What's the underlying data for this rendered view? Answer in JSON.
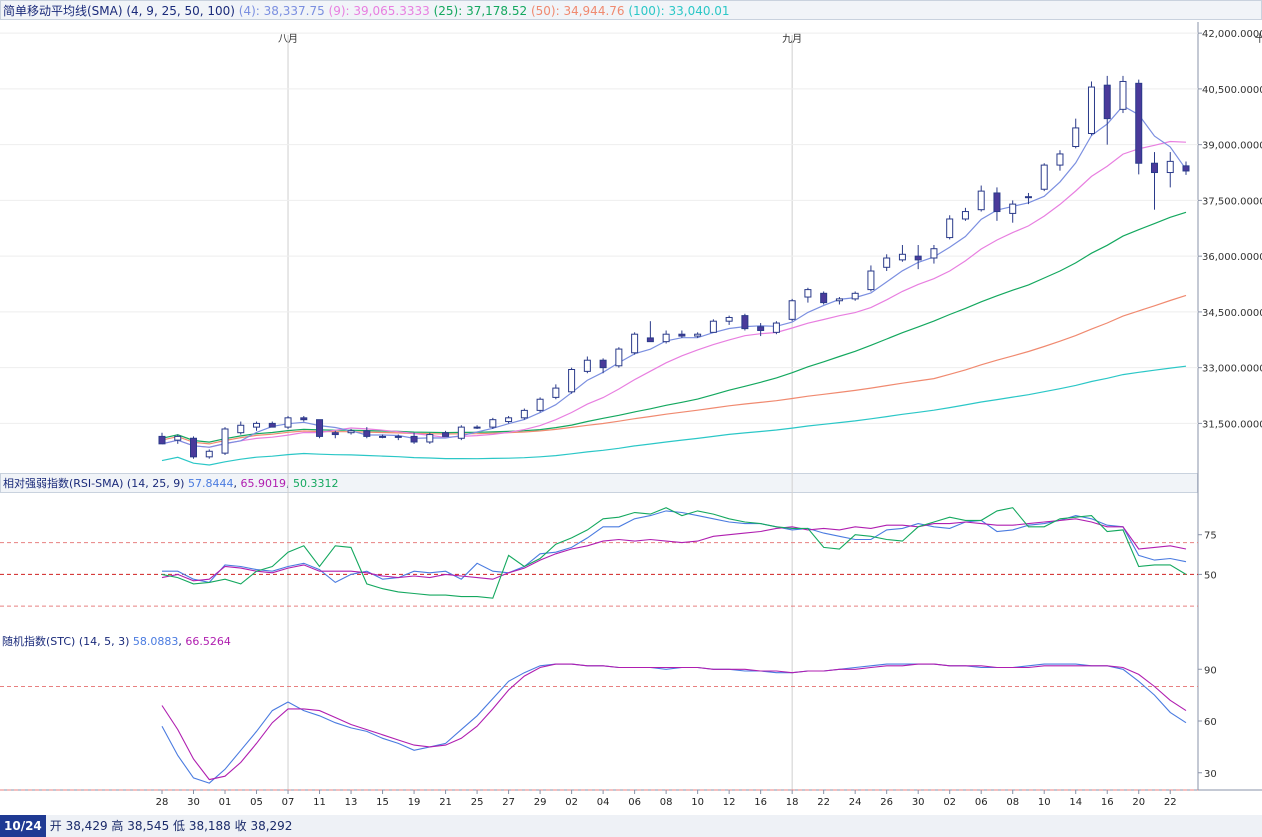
{
  "colors": {
    "sma4": "#7b8fe0",
    "sma9": "#e87fe0",
    "sma25": "#14a85f",
    "sma50": "#f08a70",
    "sma100": "#2bc7c7",
    "up_candle": "#ffffff",
    "down_candle": "#4a3a9a",
    "candle_outline": "#2a3a8a",
    "rsi": "#4a7be0",
    "rsi_sma": "#b01eb0",
    "rsi_sma2": "#14a85f",
    "stc_k": "#4a7be0",
    "stc_d": "#b01eb0",
    "ref_line": "#e88080"
  },
  "legend_top": {
    "name": "简单移动平均线(SMA) (4, 9, 25, 50, 100)",
    "v4": "(4): 38,337.75",
    "v9": "(9): 39,065.3333",
    "v25": "(25): 37,178.52",
    "v50": "(50): 34,944.76",
    "v100": "(100): 33,040.01"
  },
  "legend_rsi": {
    "name": "相对强弱指数(RSI-SMA) (14, 25, 9)",
    "v1": "57.8444",
    "v2": "65.9019",
    "v3": "50.3312"
  },
  "legend_stc": {
    "name": "随机指数(STC) (14, 5, 3)",
    "v1": "58.0883",
    "v2": "66.5264"
  },
  "footer": {
    "date": "10/24",
    "text": "开 38,429 高 38,545 低 38,188 收 38,292"
  },
  "chart_data": [
    {
      "type": "candlestick",
      "title": "简单移动平均线(SMA) (4, 9, 25, 50, 100)",
      "month_labels": [
        {
          "label": "八月",
          "index": 8
        },
        {
          "label": "九月",
          "index": 40
        },
        {
          "label": "十月",
          "index": 70
        }
      ],
      "x_tick_labels": [
        "28",
        "30",
        "01",
        "05",
        "07",
        "11",
        "13",
        "15",
        "19",
        "21",
        "25",
        "27",
        "29",
        "02",
        "04",
        "06",
        "08",
        "10",
        "12",
        "16",
        "18",
        "22",
        "24",
        "26",
        "30",
        "02",
        "06",
        "08",
        "10",
        "14",
        "16",
        "20",
        "22"
      ],
      "y_ticks": [
        "42,000.0000",
        "40,500.0000",
        "39,000.0000",
        "37,500.0000",
        "36,000.0000",
        "34,500.0000",
        "33,000.0000",
        "31,500.0000"
      ],
      "y_tick_values": [
        42000,
        40500,
        39000,
        37500,
        36000,
        34500,
        33000,
        31500
      ],
      "ylim": [
        30300,
        42300
      ],
      "candles": [
        {
          "o": 31150,
          "h": 31250,
          "l": 30950,
          "c": 30950
        },
        {
          "o": 31050,
          "h": 31200,
          "l": 30950,
          "c": 31150
        },
        {
          "o": 31100,
          "h": 31150,
          "l": 30550,
          "c": 30600
        },
        {
          "o": 30600,
          "h": 30800,
          "l": 30550,
          "c": 30750
        },
        {
          "o": 30700,
          "h": 31400,
          "l": 30650,
          "c": 31350
        },
        {
          "o": 31250,
          "h": 31550,
          "l": 31200,
          "c": 31450
        },
        {
          "o": 31400,
          "h": 31550,
          "l": 31300,
          "c": 31500
        },
        {
          "o": 31500,
          "h": 31550,
          "l": 31400,
          "c": 31400
        },
        {
          "o": 31400,
          "h": 31700,
          "l": 31350,
          "c": 31650
        },
        {
          "o": 31650,
          "h": 31700,
          "l": 31550,
          "c": 31600
        },
        {
          "o": 31600,
          "h": 31600,
          "l": 31100,
          "c": 31150
        },
        {
          "o": 31250,
          "h": 31300,
          "l": 31100,
          "c": 31200
        },
        {
          "o": 31250,
          "h": 31350,
          "l": 31200,
          "c": 31300
        },
        {
          "o": 31300,
          "h": 31400,
          "l": 31100,
          "c": 31150
        },
        {
          "o": 31150,
          "h": 31200,
          "l": 31100,
          "c": 31150
        },
        {
          "o": 31150,
          "h": 31200,
          "l": 31050,
          "c": 31150
        },
        {
          "o": 31150,
          "h": 31250,
          "l": 30950,
          "c": 31000
        },
        {
          "o": 31000,
          "h": 31250,
          "l": 30950,
          "c": 31200
        },
        {
          "o": 31250,
          "h": 31300,
          "l": 31150,
          "c": 31150
        },
        {
          "o": 31100,
          "h": 31450,
          "l": 31050,
          "c": 31400
        },
        {
          "o": 31400,
          "h": 31450,
          "l": 31350,
          "c": 31400
        },
        {
          "o": 31400,
          "h": 31650,
          "l": 31350,
          "c": 31600
        },
        {
          "o": 31550,
          "h": 31700,
          "l": 31500,
          "c": 31650
        },
        {
          "o": 31650,
          "h": 31900,
          "l": 31600,
          "c": 31850
        },
        {
          "o": 31850,
          "h": 32200,
          "l": 31800,
          "c": 32150
        },
        {
          "o": 32200,
          "h": 32550,
          "l": 32150,
          "c": 32450
        },
        {
          "o": 32350,
          "h": 33000,
          "l": 32300,
          "c": 32950
        },
        {
          "o": 32900,
          "h": 33300,
          "l": 32850,
          "c": 33200
        },
        {
          "o": 33200,
          "h": 33250,
          "l": 32850,
          "c": 33000
        },
        {
          "o": 33050,
          "h": 33550,
          "l": 33000,
          "c": 33500
        },
        {
          "o": 33400,
          "h": 33950,
          "l": 33350,
          "c": 33900
        },
        {
          "o": 33800,
          "h": 34250,
          "l": 33750,
          "c": 33700
        },
        {
          "o": 33700,
          "h": 34000,
          "l": 33650,
          "c": 33900
        },
        {
          "o": 33900,
          "h": 34000,
          "l": 33800,
          "c": 33850
        },
        {
          "o": 33850,
          "h": 33950,
          "l": 33800,
          "c": 33900
        },
        {
          "o": 33950,
          "h": 34300,
          "l": 33950,
          "c": 34250
        },
        {
          "o": 34250,
          "h": 34400,
          "l": 34150,
          "c": 34350
        },
        {
          "o": 34400,
          "h": 34450,
          "l": 34000,
          "c": 34050
        },
        {
          "o": 34100,
          "h": 34200,
          "l": 33850,
          "c": 34000
        },
        {
          "o": 33950,
          "h": 34250,
          "l": 33900,
          "c": 34200
        },
        {
          "o": 34300,
          "h": 34850,
          "l": 34250,
          "c": 34800
        },
        {
          "o": 34900,
          "h": 35150,
          "l": 34750,
          "c": 35100
        },
        {
          "o": 35000,
          "h": 35050,
          "l": 34700,
          "c": 34750
        },
        {
          "o": 34800,
          "h": 34900,
          "l": 34700,
          "c": 34850
        },
        {
          "o": 34850,
          "h": 35050,
          "l": 34800,
          "c": 35000
        },
        {
          "o": 35100,
          "h": 35750,
          "l": 35050,
          "c": 35600
        },
        {
          "o": 35700,
          "h": 36050,
          "l": 35600,
          "c": 35950
        },
        {
          "o": 35900,
          "h": 36300,
          "l": 35850,
          "c": 36050
        },
        {
          "o": 36000,
          "h": 36300,
          "l": 35650,
          "c": 35900
        },
        {
          "o": 35950,
          "h": 36300,
          "l": 35800,
          "c": 36200
        },
        {
          "o": 36500,
          "h": 37100,
          "l": 36450,
          "c": 37000
        },
        {
          "o": 37000,
          "h": 37300,
          "l": 36950,
          "c": 37200
        },
        {
          "o": 37250,
          "h": 37900,
          "l": 37200,
          "c": 37750
        },
        {
          "o": 37700,
          "h": 37850,
          "l": 36950,
          "c": 37200
        },
        {
          "o": 37150,
          "h": 37500,
          "l": 36900,
          "c": 37400
        },
        {
          "o": 37600,
          "h": 37700,
          "l": 37400,
          "c": 37600
        },
        {
          "o": 37800,
          "h": 38500,
          "l": 37750,
          "c": 38450
        },
        {
          "o": 38450,
          "h": 38850,
          "l": 38300,
          "c": 38750
        },
        {
          "o": 38950,
          "h": 39700,
          "l": 38900,
          "c": 39450
        },
        {
          "o": 39300,
          "h": 40700,
          "l": 39250,
          "c": 40550
        },
        {
          "o": 40600,
          "h": 40850,
          "l": 39000,
          "c": 39700
        },
        {
          "o": 39950,
          "h": 40850,
          "l": 39850,
          "c": 40700
        },
        {
          "o": 40650,
          "h": 40750,
          "l": 38200,
          "c": 38500
        },
        {
          "o": 38500,
          "h": 38800,
          "l": 37250,
          "c": 38250
        },
        {
          "o": 38250,
          "h": 38800,
          "l": 37850,
          "c": 38550
        },
        {
          "o": 38429,
          "h": 38545,
          "l": 38188,
          "c": 38292
        }
      ],
      "sma4_end": 38337.75,
      "sma9_end": 39065.3333,
      "sma25_end": 37178.52,
      "sma50_end": 34944.76,
      "sma100_end": 33040.01
    },
    {
      "type": "line",
      "title": "相对强弱指数(RSI-SMA) (14, 25, 9)",
      "y_ticks": [
        "75",
        "50"
      ],
      "ylim": [
        15,
        100
      ],
      "ref_lines": [
        70,
        50,
        30
      ],
      "series": [
        {
          "name": "57.8444",
          "values": [
            52,
            52,
            47,
            45,
            56,
            55,
            53,
            52,
            55,
            57,
            53,
            45,
            50,
            52,
            47,
            48,
            52,
            51,
            52,
            47,
            57,
            52,
            51,
            55,
            63,
            64,
            67,
            73,
            80,
            80,
            85,
            87,
            90,
            89,
            87,
            85,
            83,
            82,
            82,
            80,
            78,
            79,
            76,
            74,
            72,
            72,
            78,
            79,
            82,
            80,
            79,
            83,
            84,
            77,
            78,
            81,
            82,
            84,
            87,
            85,
            81,
            80,
            62,
            59,
            60,
            58
          ]
        },
        {
          "name": "65.9019",
          "values": [
            48,
            50,
            46,
            47,
            55,
            54,
            52,
            51,
            54,
            56,
            52,
            52,
            52,
            51,
            49,
            48,
            49,
            48,
            50,
            49,
            48,
            47,
            51,
            54,
            59,
            63,
            66,
            68,
            71,
            72,
            71,
            72,
            71,
            70,
            71,
            74,
            75,
            76,
            77,
            79,
            80,
            78,
            79,
            78,
            80,
            79,
            81,
            81,
            80,
            82,
            82,
            83,
            82,
            81,
            81,
            82,
            83,
            84,
            85,
            83,
            80,
            80,
            66,
            67,
            68,
            66
          ]
        },
        {
          "name": "50.3312",
          "values": [
            50,
            48,
            44,
            45,
            47,
            44,
            52,
            55,
            64,
            68,
            55,
            68,
            67,
            44,
            41,
            39,
            38,
            37,
            37,
            36,
            36,
            35,
            62,
            55,
            60,
            69,
            73,
            78,
            85,
            86,
            89,
            88,
            92,
            87,
            90,
            88,
            85,
            83,
            82,
            80,
            79,
            79,
            67,
            66,
            75,
            74,
            72,
            71,
            80,
            83,
            86,
            84,
            84,
            90,
            92,
            80,
            80,
            85,
            86,
            87,
            77,
            78,
            55,
            56,
            56,
            50
          ]
        }
      ]
    },
    {
      "type": "line",
      "title": "随机指数(STC) (14, 5, 3)",
      "y_ticks": [
        "90",
        "60",
        "30"
      ],
      "ylim": [
        20,
        100
      ],
      "ref_lines": [
        80,
        20
      ],
      "series": [
        {
          "name": "58.0883",
          "values": [
            57,
            40,
            27,
            24,
            32,
            43,
            54,
            66,
            71,
            66,
            63,
            59,
            56,
            54,
            50,
            47,
            43,
            45,
            47,
            55,
            63,
            73,
            83,
            88,
            92,
            93,
            93,
            92,
            92,
            91,
            91,
            91,
            90,
            91,
            91,
            90,
            90,
            89,
            89,
            88,
            88,
            89,
            89,
            90,
            91,
            92,
            93,
            93,
            93,
            93,
            92,
            92,
            91,
            91,
            91,
            92,
            93,
            93,
            93,
            92,
            92,
            90,
            83,
            75,
            65,
            59
          ]
        },
        {
          "name": "66.5264",
          "values": [
            69,
            55,
            38,
            26,
            28,
            36,
            47,
            59,
            67,
            67,
            66,
            62,
            58,
            55,
            52,
            49,
            46,
            45,
            46,
            50,
            57,
            67,
            78,
            86,
            91,
            93,
            93,
            92,
            92,
            91,
            91,
            91,
            91,
            91,
            91,
            90,
            90,
            90,
            89,
            89,
            88,
            89,
            89,
            90,
            90,
            91,
            92,
            92,
            93,
            93,
            92,
            92,
            92,
            91,
            91,
            91,
            92,
            92,
            92,
            92,
            92,
            91,
            87,
            80,
            72,
            66
          ]
        }
      ]
    }
  ]
}
